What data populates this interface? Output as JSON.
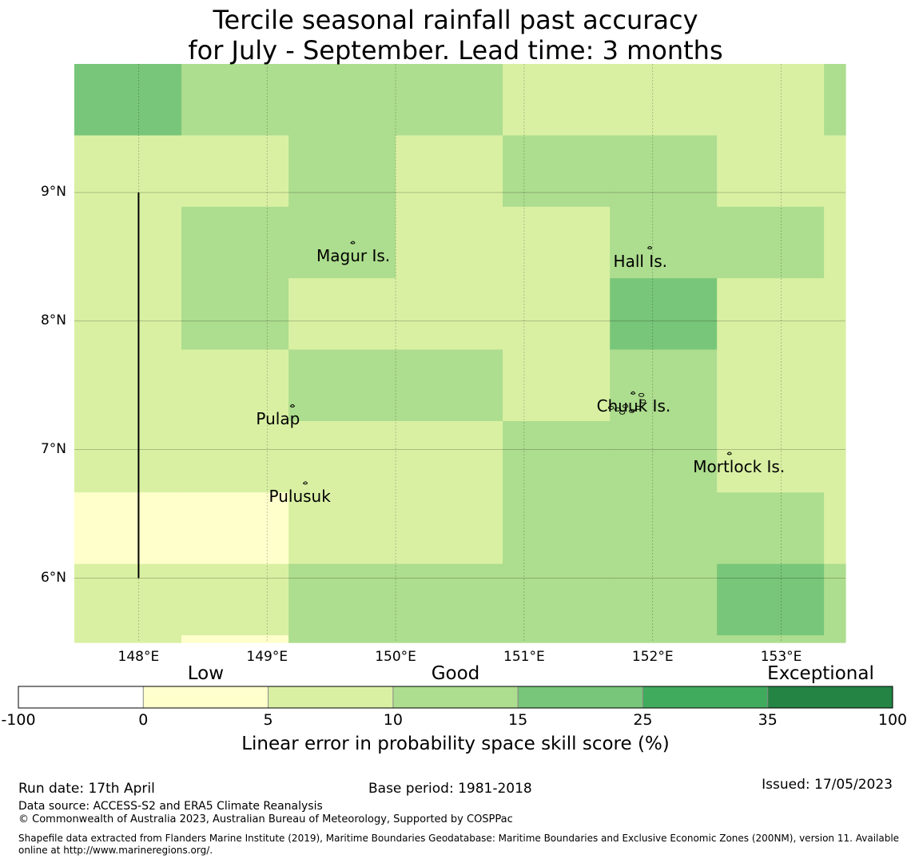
{
  "title_line1": "Tercile seasonal rainfall past accuracy",
  "title_line2": "for July - September. Lead time: 3 months",
  "map": {
    "lon_range": [
      147.5,
      153.5
    ],
    "lat_range": [
      5.5,
      10.0
    ],
    "lon_ticks": [
      {
        "value": 148,
        "label": "148°E"
      },
      {
        "value": 149,
        "label": "149°E"
      },
      {
        "value": 150,
        "label": "150°E"
      },
      {
        "value": 151,
        "label": "151°E"
      },
      {
        "value": 152,
        "label": "152°E"
      },
      {
        "value": 153,
        "label": "153°E"
      }
    ],
    "lat_ticks": [
      {
        "value": 9,
        "label": "9°N"
      },
      {
        "value": 8,
        "label": "8°N"
      },
      {
        "value": 7,
        "label": "7°N"
      },
      {
        "value": 6,
        "label": "6°N"
      }
    ],
    "grid_cell_columns": [
      147.5,
      148.333,
      149.167,
      150.0,
      150.833,
      151.667,
      152.5,
      153.333,
      153.5
    ],
    "grid_cell_rows": [
      10.0,
      9.444,
      8.889,
      8.333,
      7.778,
      7.222,
      6.667,
      6.111,
      5.556,
      5.5
    ],
    "skill_category_grid": [
      [
        3,
        2,
        2,
        2,
        1,
        1,
        1,
        2
      ],
      [
        1,
        1,
        2,
        1,
        2,
        2,
        1,
        1
      ],
      [
        1,
        2,
        2,
        1,
        1,
        2,
        2,
        1
      ],
      [
        1,
        2,
        1,
        1,
        1,
        3,
        1,
        1
      ],
      [
        1,
        1,
        2,
        2,
        1,
        2,
        1,
        1
      ],
      [
        1,
        1,
        1,
        1,
        2,
        2,
        1,
        1
      ],
      [
        0,
        0,
        1,
        1,
        2,
        2,
        2,
        1
      ],
      [
        1,
        1,
        2,
        2,
        2,
        2,
        3,
        2
      ],
      [
        1,
        0,
        2,
        2,
        2,
        2,
        2,
        2
      ]
    ],
    "boundary_line": {
      "lon": 148.0,
      "lat_from": 6.0,
      "lat_to": 9.0
    },
    "places": [
      {
        "name": "Magur Is.",
        "lon": 149.67,
        "lat": 8.57
      },
      {
        "name": "Hall Is.",
        "lon": 151.98,
        "lat": 8.53
      },
      {
        "name": "Pulap",
        "lon": 149.2,
        "lat": 7.3
      },
      {
        "name": "Chuuk Is.",
        "lon": 151.85,
        "lat": 7.4
      },
      {
        "name": "Mortlock Is.",
        "lon": 152.6,
        "lat": 6.93
      },
      {
        "name": "Pulusuk",
        "lon": 149.3,
        "lat": 6.7
      }
    ]
  },
  "colorbar": {
    "colors": [
      "#ffffff",
      "#ffffcc",
      "#d9f0a3",
      "#addd8e",
      "#78c679",
      "#41ab5d",
      "#238443"
    ],
    "boundaries": [
      "-100",
      "0",
      "5",
      "10",
      "15",
      "25",
      "35",
      "100"
    ],
    "categories": [
      "Low",
      "Good",
      "Exceptional"
    ],
    "label": "Linear error in probability space skill score (%)"
  },
  "footer": {
    "run_date": "Run date: 17th April",
    "base_period": "Base period: 1981-2018",
    "issued": "Issued: 17/05/2023",
    "data_source": "Data source: ACCESS-S2 and ERA5 Climate Reanalysis",
    "copyright": "© Commonwealth of Australia 2023, Australian Bureau of Meteorology, Supported by COSPPac",
    "shapefile_line1": "Shapefile data extracted from Flanders Marine Institute (2019), Maritime Boundaries Geodatabase: Maritime Boundaries and Exclusive Economic Zones (200NM), version 11. Available",
    "shapefile_line2": "online at http://www.marineregions.org/."
  }
}
